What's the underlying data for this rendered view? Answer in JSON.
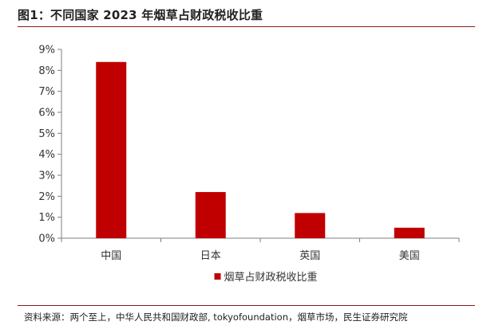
{
  "figure": {
    "title": "图1：不同国家 2023 年烟草占财政税收比重",
    "source": "资料来源：两个至上，中华人民共和国财政部, tokyofoundation，烟草市场，民生证券研究院"
  },
  "chart_data": {
    "type": "bar",
    "categories": [
      "中国",
      "日本",
      "英国",
      "美国"
    ],
    "series": [
      {
        "name": "烟草占财政税收比重",
        "values": [
          8.4,
          2.2,
          1.2,
          0.5
        ],
        "color": "#c00000"
      }
    ],
    "y_ticks": [
      "0%",
      "1%",
      "2%",
      "3%",
      "4%",
      "5%",
      "6%",
      "7%",
      "8%",
      "9%"
    ],
    "ylim": [
      0,
      9
    ],
    "y_unit": "%",
    "grid": false,
    "legend_position": "bottom-center"
  }
}
